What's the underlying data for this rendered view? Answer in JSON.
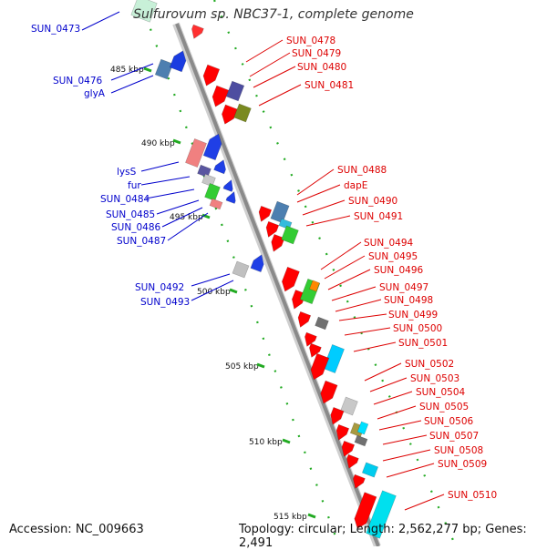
{
  "title": "Sulfurovum sp. NBC37-1, complete genome",
  "footer": {
    "accession": "Accession: NC_009663",
    "topology": "Topology: circular; Length: 2,562,277 bp; Genes: 2,491"
  },
  "colors": {
    "backbone": "#8a8a8a",
    "forward_label": "#0000cc",
    "reverse_label": "#dd0000",
    "tick": "#22aa22"
  },
  "kbp_ticks": [
    "485 kbp",
    "490 kbp",
    "495 kbp",
    "500 kbp",
    "505 kbp",
    "510 kbp",
    "515 kbp"
  ],
  "left_labels": [
    "SUN_0473",
    "SUN_0476",
    "glyA",
    "lysS",
    "fur",
    "SUN_0484",
    "SUN_0485",
    "SUN_0486",
    "SUN_0487",
    "SUN_0492",
    "SUN_0493"
  ],
  "right_labels": [
    "SUN_0478",
    "SUN_0479",
    "SUN_0480",
    "SUN_0481",
    "SUN_0488",
    "dapE",
    "SUN_0490",
    "SUN_0491",
    "SUN_0494",
    "SUN_0495",
    "SUN_0496",
    "SUN_0497",
    "SUN_0498",
    "SUN_0499",
    "SUN_0500",
    "SUN_0501",
    "SUN_0502",
    "SUN_0503",
    "SUN_0504",
    "SUN_0505",
    "SUN_0506",
    "SUN_0507",
    "SUN_0508",
    "SUN_0509",
    "SUN_0510"
  ]
}
